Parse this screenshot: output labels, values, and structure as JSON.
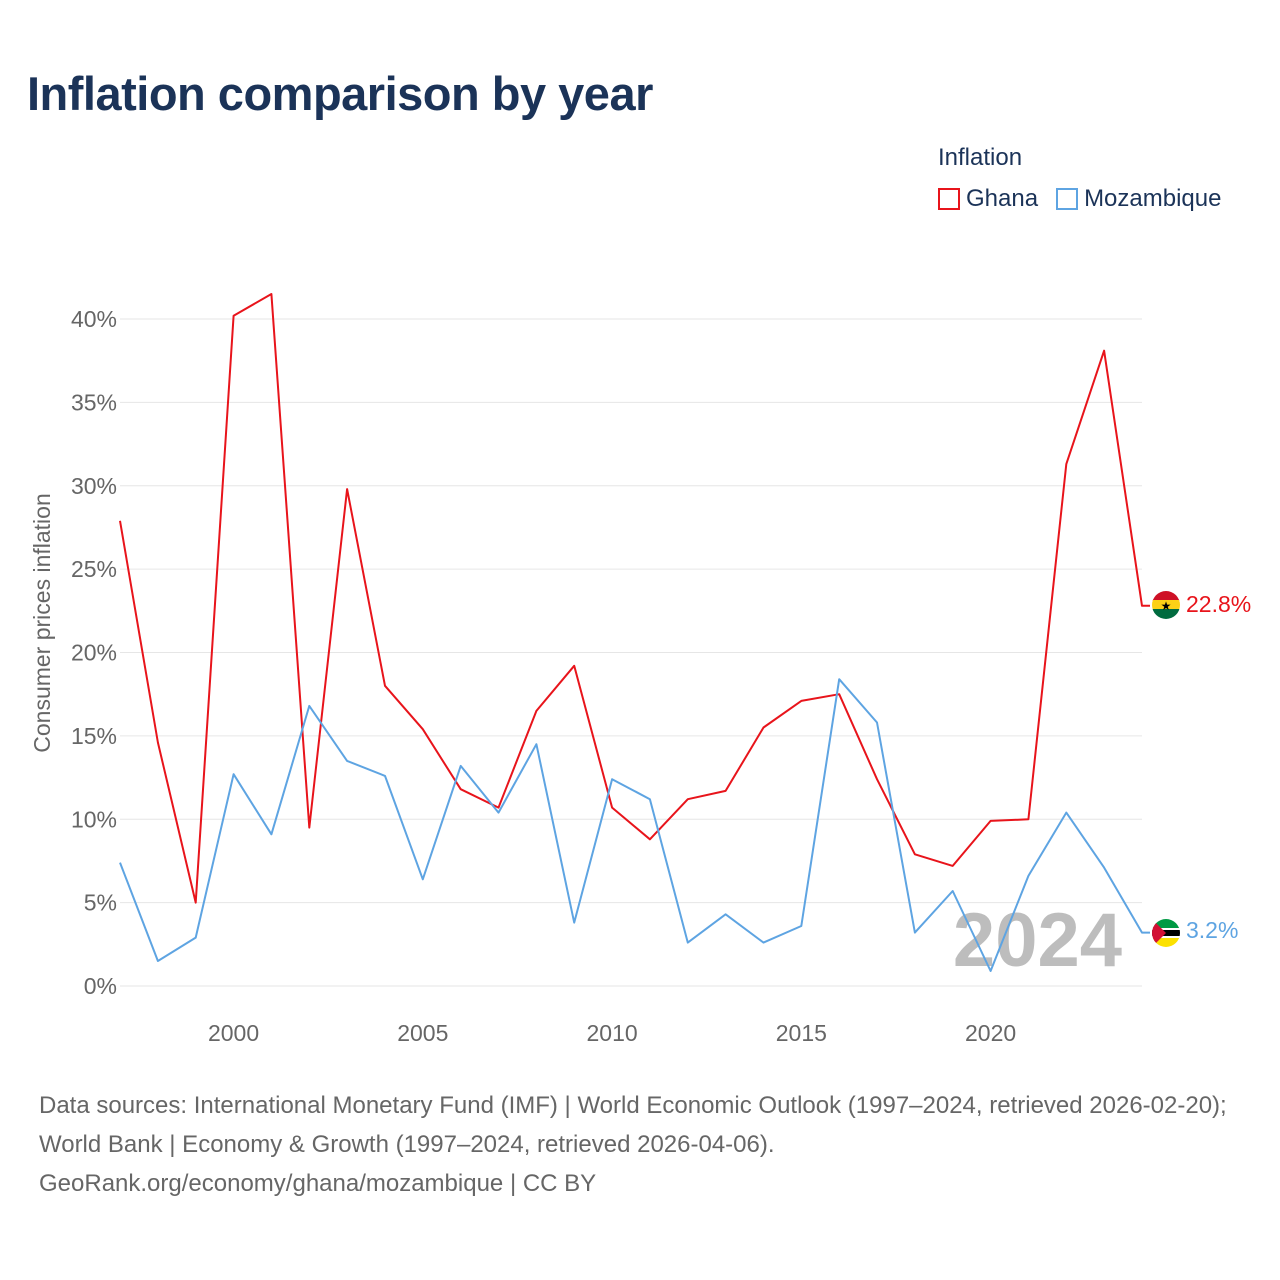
{
  "title": "Inflation comparison by year",
  "legend": {
    "title": "Inflation",
    "items": [
      {
        "label": "Ghana",
        "color": "#e8141b"
      },
      {
        "label": "Mozambique",
        "color": "#5ea4e2"
      }
    ]
  },
  "watermark_year": "2024",
  "footer": {
    "sources": "Data sources: International Monetary Fund (IMF) | World Economic Outlook (1997–2024, retrieved 2026-02-20); World Bank | Economy & Growth (1997–2024, retrieved 2026-04-06).",
    "credit": "GeoRank.org/economy/ghana/mozambique | CC BY"
  },
  "chart_data": {
    "type": "line",
    "title": "Inflation comparison by year",
    "xlabel": "",
    "ylabel": "Consumer prices inflation",
    "xlim": [
      1997,
      2024
    ],
    "ylim": [
      0,
      40
    ],
    "y_ticks": [
      0,
      5,
      10,
      15,
      20,
      25,
      30,
      35,
      40
    ],
    "y_tick_labels": [
      "0%",
      "5%",
      "10%",
      "15%",
      "20%",
      "25%",
      "30%",
      "35%",
      "40%"
    ],
    "x_ticks": [
      2000,
      2005,
      2010,
      2015,
      2020
    ],
    "x_tick_labels": [
      "2000",
      "2005",
      "2010",
      "2015",
      "2020"
    ],
    "grid": "horizontal",
    "x": [
      1997,
      1998,
      1999,
      2000,
      2001,
      2002,
      2003,
      2004,
      2005,
      2006,
      2007,
      2008,
      2009,
      2010,
      2011,
      2012,
      2013,
      2014,
      2015,
      2016,
      2017,
      2018,
      2019,
      2020,
      2021,
      2022,
      2023,
      2024
    ],
    "series": [
      {
        "name": "Ghana",
        "color": "#e8141b",
        "end_label": "22.8%",
        "values": [
          27.9,
          14.6,
          5.0,
          40.2,
          41.5,
          9.5,
          29.8,
          18.0,
          15.4,
          11.8,
          10.7,
          16.5,
          19.2,
          10.7,
          8.8,
          11.2,
          11.7,
          15.5,
          17.1,
          17.5,
          12.4,
          7.9,
          7.2,
          9.9,
          10.0,
          31.3,
          38.1,
          22.8
        ]
      },
      {
        "name": "Mozambique",
        "color": "#5ea4e2",
        "end_label": "3.2%",
        "values": [
          7.4,
          1.5,
          2.9,
          12.7,
          9.1,
          16.8,
          13.5,
          12.6,
          6.4,
          13.2,
          10.4,
          14.5,
          3.8,
          12.4,
          11.2,
          2.6,
          4.3,
          2.6,
          3.6,
          18.4,
          15.8,
          3.2,
          5.7,
          0.9,
          6.6,
          10.4,
          7.1,
          3.2
        ]
      }
    ]
  }
}
